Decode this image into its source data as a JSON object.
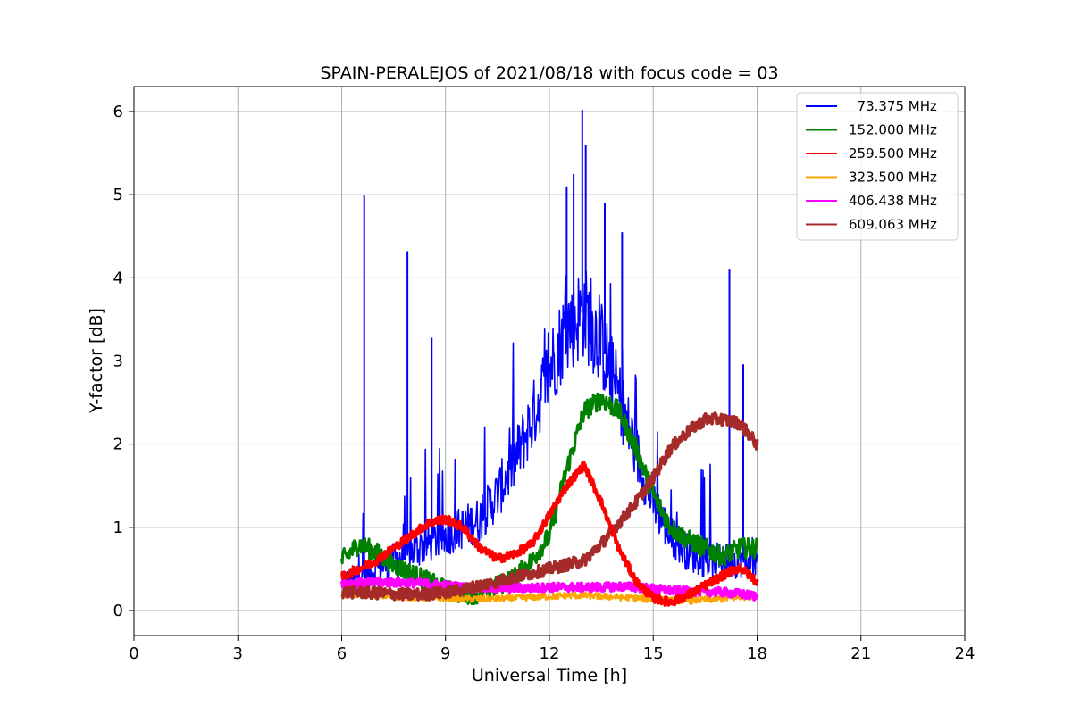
{
  "chart_data": {
    "type": "line",
    "title": "SPAIN-PERALEJOS of 2021/08/18 with focus code = 03",
    "xlabel": "Universal Time [h]",
    "ylabel": "Y-factor [dB]",
    "xlim": [
      0,
      24
    ],
    "ylim": [
      -0.3,
      6.3
    ],
    "xticks": [
      0,
      3,
      6,
      9,
      12,
      15,
      18,
      21,
      24
    ],
    "yticks": [
      0,
      1,
      2,
      3,
      4,
      5,
      6
    ],
    "grid": true,
    "legend_position": "top-right",
    "series": [
      {
        "name": "  73.375 MHz",
        "color": "#0000ff",
        "x": [
          6.0,
          6.5,
          7.0,
          7.5,
          8.0,
          8.5,
          9.0,
          9.5,
          10.0,
          10.5,
          11.0,
          11.5,
          12.0,
          12.5,
          13.0,
          13.5,
          14.0,
          14.5,
          15.0,
          15.5,
          16.0,
          16.5,
          17.0,
          17.5,
          18.0
        ],
        "values": [
          0.3,
          0.4,
          0.5,
          0.6,
          0.7,
          0.8,
          0.9,
          1.0,
          1.1,
          1.4,
          1.8,
          2.3,
          2.9,
          3.4,
          3.6,
          3.2,
          2.6,
          1.9,
          1.3,
          0.9,
          0.7,
          0.6,
          0.6,
          0.6,
          0.6
        ],
        "spikes": [
          [
            6.65,
            4.99
          ],
          [
            7.9,
            4.32
          ],
          [
            8.6,
            3.28
          ],
          [
            12.5,
            5.1
          ],
          [
            12.7,
            5.25
          ],
          [
            12.95,
            6.02
          ],
          [
            13.05,
            5.6
          ],
          [
            13.6,
            4.9
          ],
          [
            14.1,
            4.55
          ],
          [
            17.2,
            4.11
          ],
          [
            17.6,
            2.96
          ]
        ]
      },
      {
        "name": "152.000 MHz",
        "color": "#008000",
        "x": [
          6.0,
          6.5,
          7.0,
          7.5,
          8.0,
          8.5,
          9.0,
          9.5,
          10.0,
          10.5,
          11.0,
          11.5,
          12.0,
          12.5,
          13.0,
          13.5,
          14.0,
          14.5,
          15.0,
          15.5,
          16.0,
          16.5,
          17.0,
          17.5,
          18.0
        ],
        "values": [
          0.6,
          0.8,
          0.7,
          0.55,
          0.45,
          0.35,
          0.25,
          0.2,
          0.2,
          0.3,
          0.4,
          0.6,
          0.9,
          1.7,
          2.4,
          2.55,
          2.4,
          1.95,
          1.4,
          1.0,
          0.85,
          0.75,
          0.65,
          0.75,
          0.75
        ]
      },
      {
        "name": "259.500 MHz",
        "color": "#ff0000",
        "x": [
          6.0,
          6.5,
          7.0,
          7.5,
          8.0,
          8.5,
          9.0,
          9.5,
          10.0,
          10.5,
          11.0,
          11.5,
          12.0,
          12.5,
          13.0,
          13.5,
          14.0,
          14.5,
          15.0,
          15.5,
          16.0,
          16.5,
          17.0,
          17.5,
          18.0
        ],
        "values": [
          0.4,
          0.5,
          0.6,
          0.75,
          0.9,
          1.05,
          1.1,
          1.0,
          0.75,
          0.62,
          0.68,
          0.8,
          1.15,
          1.5,
          1.75,
          1.3,
          0.75,
          0.35,
          0.15,
          0.1,
          0.18,
          0.3,
          0.42,
          0.52,
          0.35
        ]
      },
      {
        "name": "323.500 MHz",
        "color": "#ffa500",
        "x": [
          6.0,
          6.5,
          7.0,
          7.5,
          8.0,
          8.5,
          9.0,
          9.5,
          10.0,
          10.5,
          11.0,
          11.5,
          12.0,
          12.5,
          13.0,
          13.5,
          14.0,
          14.5,
          15.0,
          15.5,
          16.0,
          16.5,
          17.0,
          17.5,
          18.0
        ],
        "values": [
          0.2,
          0.19,
          0.18,
          0.17,
          0.16,
          0.15,
          0.15,
          0.14,
          0.14,
          0.14,
          0.15,
          0.16,
          0.17,
          0.18,
          0.18,
          0.17,
          0.16,
          0.15,
          0.13,
          0.12,
          0.12,
          0.13,
          0.14,
          0.16,
          0.18
        ]
      },
      {
        "name": "406.438 MHz",
        "color": "#ff00ff",
        "x": [
          6.0,
          6.5,
          7.0,
          7.5,
          8.0,
          8.5,
          9.0,
          9.5,
          10.0,
          10.5,
          11.0,
          11.5,
          12.0,
          12.5,
          13.0,
          13.5,
          14.0,
          14.5,
          15.0,
          15.5,
          16.0,
          16.5,
          17.0,
          17.5,
          18.0
        ],
        "values": [
          0.33,
          0.33,
          0.34,
          0.34,
          0.33,
          0.32,
          0.3,
          0.28,
          0.27,
          0.27,
          0.27,
          0.27,
          0.28,
          0.28,
          0.28,
          0.28,
          0.29,
          0.28,
          0.26,
          0.24,
          0.23,
          0.23,
          0.22,
          0.2,
          0.17
        ]
      },
      {
        "name": "609.063 MHz",
        "color": "#a52a2a",
        "x": [
          6.0,
          6.5,
          7.0,
          7.5,
          8.0,
          8.5,
          9.0,
          9.5,
          10.0,
          10.5,
          11.0,
          11.5,
          12.0,
          12.5,
          13.0,
          13.5,
          14.0,
          14.5,
          15.0,
          15.5,
          16.0,
          16.5,
          17.0,
          17.5,
          18.0
        ],
        "values": [
          0.22,
          0.22,
          0.21,
          0.2,
          0.19,
          0.2,
          0.22,
          0.25,
          0.3,
          0.35,
          0.4,
          0.45,
          0.5,
          0.55,
          0.6,
          0.8,
          1.05,
          1.3,
          1.6,
          1.95,
          2.15,
          2.3,
          2.3,
          2.25,
          2.0
        ]
      }
    ]
  }
}
